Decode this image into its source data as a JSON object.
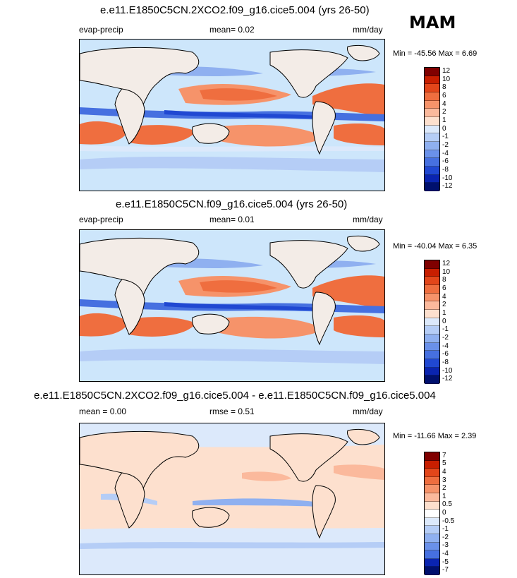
{
  "season": "MAM",
  "panels": [
    {
      "title": "e.e11.E1850C5CN.2XCO2.f09_g16.cice5.004 (yrs 26-50)",
      "left_label": "evap-precip",
      "center_label": "mean=   0.02",
      "right_label": "mm/day",
      "minmax": "Min = -45.56 Max =   6.69",
      "ticks": [
        "12",
        "10",
        "8",
        "6",
        "4",
        "2",
        "1",
        "0",
        "-1",
        "-2",
        "-4",
        "-6",
        "-8",
        "-10",
        "-12"
      ]
    },
    {
      "title": "e.e11.E1850C5CN.f09_g16.cice5.004 (yrs 26-50)",
      "left_label": "evap-precip",
      "center_label": "mean=   0.01",
      "right_label": "mm/day",
      "minmax": "Min = -40.04 Max =   6.35",
      "ticks": [
        "12",
        "10",
        "8",
        "6",
        "4",
        "2",
        "1",
        "0",
        "-1",
        "-2",
        "-4",
        "-6",
        "-8",
        "-10",
        "-12"
      ]
    },
    {
      "title": "e.e11.E1850C5CN.2XCO2.f09_g16.cice5.004 - e.e11.E1850C5CN.f09_g16.cice5.004",
      "left_label": "mean =   0.00",
      "center_label": "rmse =   0.51",
      "right_label": "mm/day",
      "minmax": "Min = -11.66 Max =   2.39",
      "ticks": [
        "7",
        "5",
        "4",
        "3",
        "2",
        "1",
        "0.5",
        "0",
        "-0.5",
        "-1",
        "-2",
        "-3",
        "-4",
        "-5",
        "-7"
      ]
    }
  ],
  "colors": {
    "abs_scale": [
      "#800000",
      "#c81e00",
      "#e3461a",
      "#ef6e3f",
      "#f6936a",
      "#fbb99c",
      "#fde0ce",
      "#dce9fb",
      "#b5cdf6",
      "#8fb0f0",
      "#6a91ea",
      "#4670e0",
      "#2048d2",
      "#0a24b0",
      "#00106e"
    ],
    "diff_scale": [
      "#800000",
      "#c81e00",
      "#e3461a",
      "#ef6e3f",
      "#f6936a",
      "#fbb99c",
      "#fde0ce",
      "#ffffff",
      "#dce9fb",
      "#b5cdf6",
      "#8fb0f0",
      "#6a91ea",
      "#4670e0",
      "#0a24b0",
      "#00106e"
    ]
  }
}
